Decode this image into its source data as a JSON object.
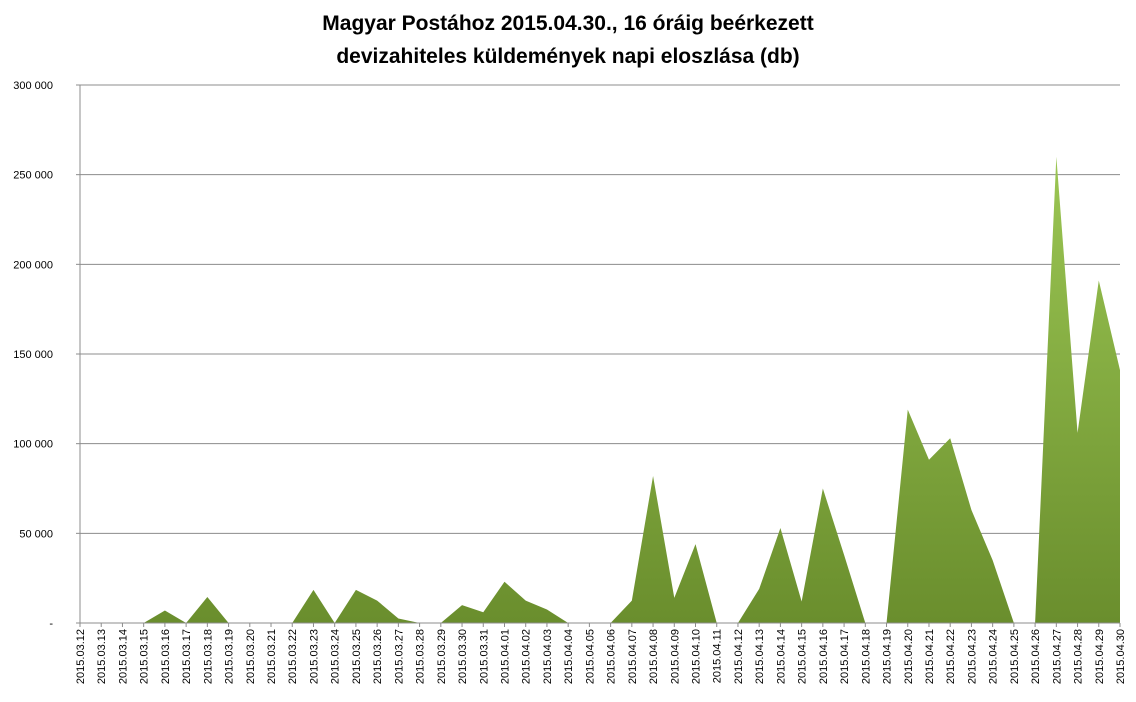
{
  "chart_data": {
    "type": "area",
    "title_lines": [
      "Magyar Postához 2015.04.30., 16 óráig beérkezett",
      "devizahiteles küldemények napi eloszlása (db)"
    ],
    "xlabel": "",
    "ylabel": "",
    "ylim": [
      0,
      300000
    ],
    "y_ticks": [
      {
        "value": 0,
        "label": "-"
      },
      {
        "value": 50000,
        "label": "50 000"
      },
      {
        "value": 100000,
        "label": "100 000"
      },
      {
        "value": 150000,
        "label": "150 000"
      },
      {
        "value": 200000,
        "label": "200 000"
      },
      {
        "value": 250000,
        "label": "250 000"
      },
      {
        "value": 300000,
        "label": "300 000"
      }
    ],
    "grid": true,
    "legend": "none",
    "categories": [
      "2015.03.12",
      "2015.03.13",
      "2015.03.14",
      "2015.03.15",
      "2015.03.16",
      "2015.03.17",
      "2015.03.18",
      "2015.03.19",
      "2015.03.20",
      "2015.03.21",
      "2015.03.22",
      "2015.03.23",
      "2015.03.24",
      "2015.03.25",
      "2015.03.26",
      "2015.03.27",
      "2015.03.28",
      "2015.03.29",
      "2015.03.30",
      "2015.03.31",
      "2015.04.01",
      "2015.04.02",
      "2015.04.03",
      "2015.04.04",
      "2015.04.05",
      "2015.04.06",
      "2015.04.07",
      "2015.04.08",
      "2015.04.09",
      "2015.04.10",
      "2015.04.11",
      "2015.04.12",
      "2015.04.13",
      "2015.04.14",
      "2015.04.15",
      "2015.04.16",
      "2015.04.17",
      "2015.04.18",
      "2015.04.19",
      "2015.04.20",
      "2015.04.21",
      "2015.04.22",
      "2015.04.23",
      "2015.04.24",
      "2015.04.25",
      "2015.04.26",
      "2015.04.27",
      "2015.04.28",
      "2015.04.29",
      "2015.04.30"
    ],
    "series": [
      {
        "values": [
          0,
          0,
          0,
          0,
          7000,
          0,
          14500,
          0,
          0,
          0,
          0,
          18500,
          0,
          18500,
          12500,
          2500,
          0,
          0,
          10000,
          6000,
          23000,
          12500,
          7500,
          0,
          0,
          0,
          12500,
          82000,
          14000,
          44000,
          0,
          0,
          19000,
          53000,
          12000,
          75000,
          38000,
          0,
          0,
          119000,
          91000,
          103000,
          63000,
          35000,
          0,
          0,
          260000,
          106000,
          191000,
          141000
        ],
        "color_top": "#9BC653",
        "color_bottom": "#6A8E2D"
      }
    ]
  }
}
